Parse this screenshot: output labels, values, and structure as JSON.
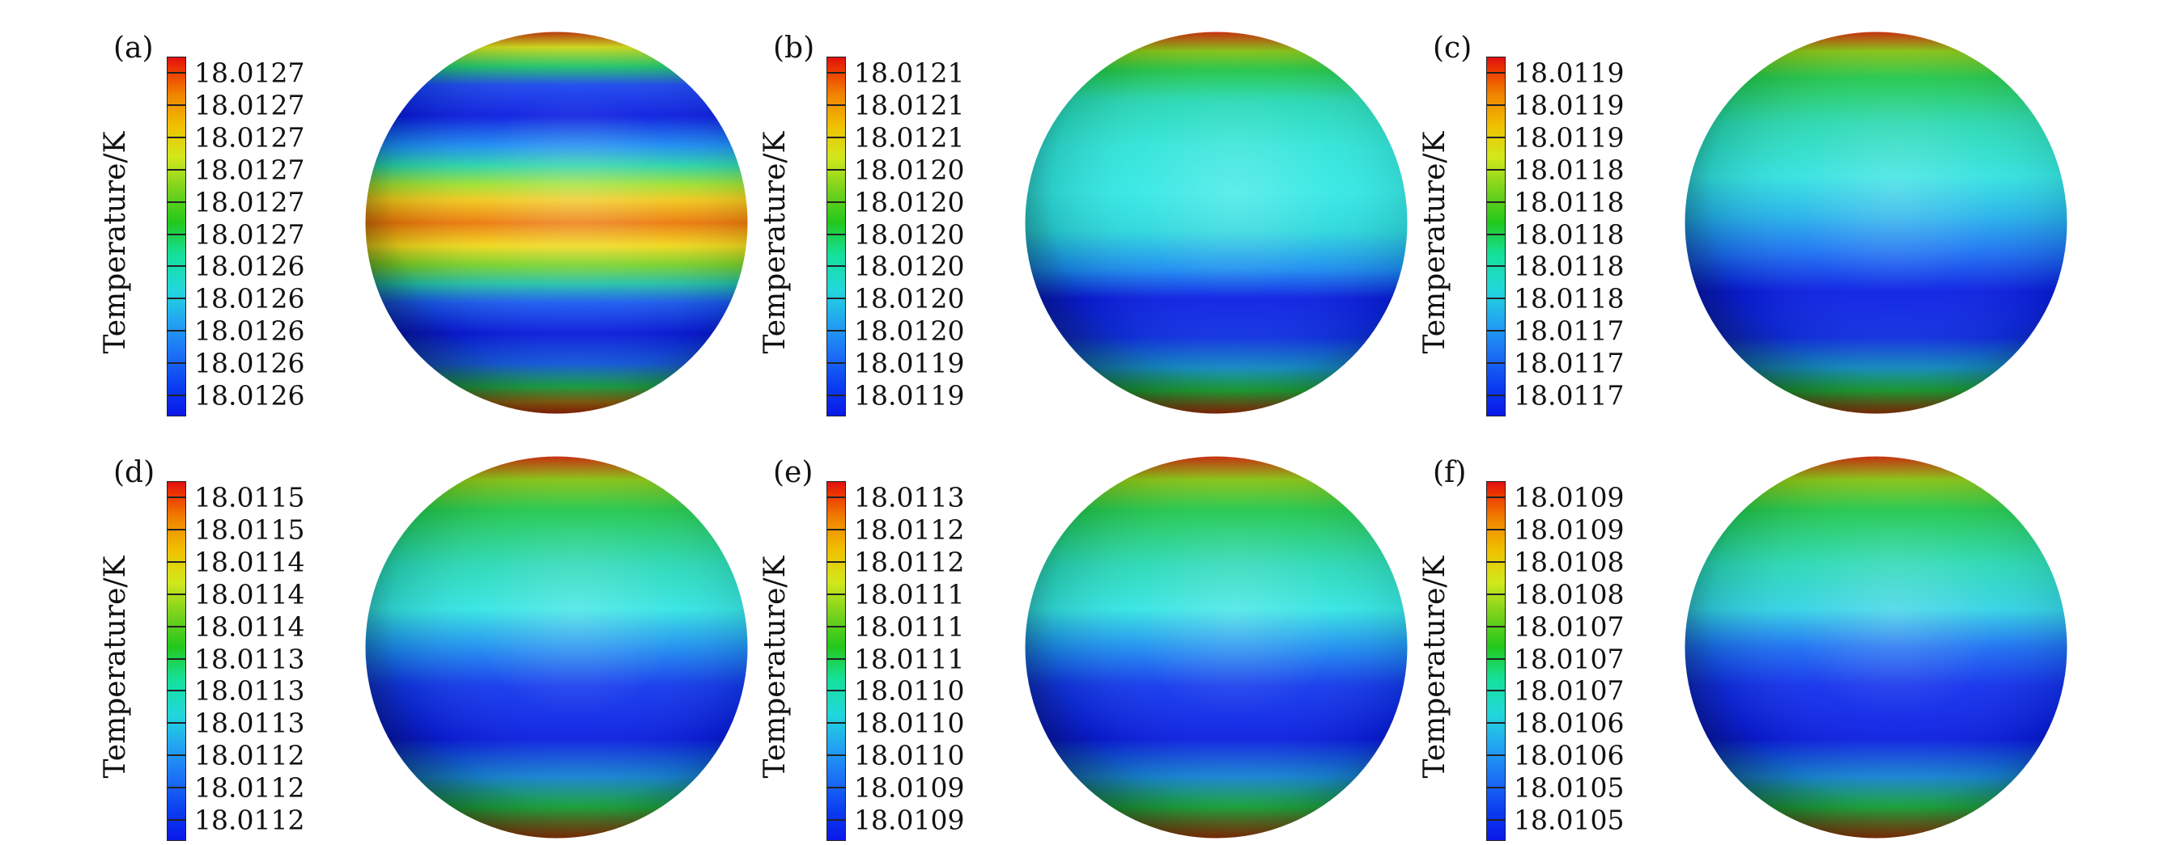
{
  "colorbar_title": "Temperature/K",
  "colors": {
    "deep_blue": "#0a1ce6",
    "blue": "#1a5af4",
    "cyan": "#2ee8e0",
    "green": "#2ec82a",
    "yellow": "#f0e81a",
    "orange": "#f08c0a",
    "red": "#d02a0a"
  },
  "panels": [
    {
      "label": "(a)",
      "ticks": [
        "18.0127",
        "18.0127",
        "18.0127",
        "18.0127",
        "18.0127",
        "18.0127",
        "18.0126",
        "18.0126",
        "18.0126",
        "18.0126",
        "18.0126"
      ],
      "bands": [
        {
          "pos": 0.0,
          "color": "#c43a08"
        },
        {
          "pos": 0.04,
          "color": "#d2e01a"
        },
        {
          "pos": 0.09,
          "color": "#1ec86a"
        },
        {
          "pos": 0.14,
          "color": "#1a46ee"
        },
        {
          "pos": 0.22,
          "color": "#0a1ce0"
        },
        {
          "pos": 0.3,
          "color": "#1a8ef0"
        },
        {
          "pos": 0.35,
          "color": "#28d2a8"
        },
        {
          "pos": 0.4,
          "color": "#9ee030"
        },
        {
          "pos": 0.44,
          "color": "#f0c81a"
        },
        {
          "pos": 0.5,
          "color": "#ec780a"
        },
        {
          "pos": 0.56,
          "color": "#f0d81a"
        },
        {
          "pos": 0.61,
          "color": "#7ad22a"
        },
        {
          "pos": 0.66,
          "color": "#22c0a8"
        },
        {
          "pos": 0.71,
          "color": "#1a5af2"
        },
        {
          "pos": 0.79,
          "color": "#0a1ce4"
        },
        {
          "pos": 0.87,
          "color": "#1a64ee"
        },
        {
          "pos": 0.93,
          "color": "#24c052"
        },
        {
          "pos": 0.97,
          "color": "#b07a14"
        },
        {
          "pos": 1.0,
          "color": "#c4300a"
        }
      ]
    },
    {
      "label": "(b)",
      "ticks": [
        "18.0121",
        "18.0121",
        "18.0121",
        "18.0120",
        "18.0120",
        "18.0120",
        "18.0120",
        "18.0120",
        "18.0120",
        "18.0119",
        "18.0119"
      ],
      "bands": [
        {
          "pos": 0.0,
          "color": "#d4300a"
        },
        {
          "pos": 0.05,
          "color": "#88c814"
        },
        {
          "pos": 0.1,
          "color": "#22c848"
        },
        {
          "pos": 0.18,
          "color": "#26d8b4"
        },
        {
          "pos": 0.3,
          "color": "#2ee4d8"
        },
        {
          "pos": 0.42,
          "color": "#32e8e4"
        },
        {
          "pos": 0.52,
          "color": "#2ad8dc"
        },
        {
          "pos": 0.62,
          "color": "#1a8ef0"
        },
        {
          "pos": 0.7,
          "color": "#0a1ee4"
        },
        {
          "pos": 0.8,
          "color": "#1034ec"
        },
        {
          "pos": 0.88,
          "color": "#1a9ad8"
        },
        {
          "pos": 0.94,
          "color": "#24c040"
        },
        {
          "pos": 1.0,
          "color": "#c0380a"
        }
      ]
    },
    {
      "label": "(c)",
      "ticks": [
        "18.0119",
        "18.0119",
        "18.0119",
        "18.0118",
        "18.0118",
        "18.0118",
        "18.0118",
        "18.0118",
        "18.0117",
        "18.0117",
        "18.0117"
      ],
      "bands": [
        {
          "pos": 0.0,
          "color": "#d4300a"
        },
        {
          "pos": 0.05,
          "color": "#8cc814"
        },
        {
          "pos": 0.12,
          "color": "#22c84c"
        },
        {
          "pos": 0.24,
          "color": "#28d8b0"
        },
        {
          "pos": 0.38,
          "color": "#30e2e0"
        },
        {
          "pos": 0.48,
          "color": "#24b4ea"
        },
        {
          "pos": 0.58,
          "color": "#1a6ef2"
        },
        {
          "pos": 0.68,
          "color": "#0a1ee4"
        },
        {
          "pos": 0.8,
          "color": "#1030ea"
        },
        {
          "pos": 0.88,
          "color": "#1a9ad2"
        },
        {
          "pos": 0.94,
          "color": "#24c040"
        },
        {
          "pos": 1.0,
          "color": "#b8400a"
        }
      ]
    },
    {
      "label": "(d)",
      "ticks": [
        "18.0115",
        "18.0115",
        "18.0114",
        "18.0114",
        "18.0114",
        "18.0113",
        "18.0113",
        "18.0113",
        "18.0112",
        "18.0112",
        "18.0112"
      ],
      "bands": [
        {
          "pos": 0.0,
          "color": "#d2300a"
        },
        {
          "pos": 0.06,
          "color": "#8cc814"
        },
        {
          "pos": 0.14,
          "color": "#22c84c"
        },
        {
          "pos": 0.28,
          "color": "#28d8b4"
        },
        {
          "pos": 0.4,
          "color": "#32e4e2"
        },
        {
          "pos": 0.5,
          "color": "#1c8ef0"
        },
        {
          "pos": 0.6,
          "color": "#1238ec"
        },
        {
          "pos": 0.74,
          "color": "#0a1ee4"
        },
        {
          "pos": 0.84,
          "color": "#1a8ee0"
        },
        {
          "pos": 0.92,
          "color": "#24c048"
        },
        {
          "pos": 1.0,
          "color": "#b8420a"
        }
      ]
    },
    {
      "label": "(e)",
      "ticks": [
        "18.0113",
        "18.0112",
        "18.0112",
        "18.0111",
        "18.0111",
        "18.0111",
        "18.0110",
        "18.0110",
        "18.0110",
        "18.0109",
        "18.0109"
      ],
      "bands": [
        {
          "pos": 0.0,
          "color": "#d2300a"
        },
        {
          "pos": 0.06,
          "color": "#8cc814"
        },
        {
          "pos": 0.14,
          "color": "#22c84c"
        },
        {
          "pos": 0.28,
          "color": "#28d8b4"
        },
        {
          "pos": 0.4,
          "color": "#32e4e2"
        },
        {
          "pos": 0.5,
          "color": "#1c8ef0"
        },
        {
          "pos": 0.6,
          "color": "#1238ec"
        },
        {
          "pos": 0.74,
          "color": "#0a1ee4"
        },
        {
          "pos": 0.84,
          "color": "#1a8ee0"
        },
        {
          "pos": 0.92,
          "color": "#24c048"
        },
        {
          "pos": 1.0,
          "color": "#b8420a"
        }
      ]
    },
    {
      "label": "(f)",
      "ticks": [
        "18.0109",
        "18.0109",
        "18.0108",
        "18.0108",
        "18.0107",
        "18.0107",
        "18.0107",
        "18.0106",
        "18.0106",
        "18.0105",
        "18.0105"
      ],
      "bands": [
        {
          "pos": 0.0,
          "color": "#d2300a"
        },
        {
          "pos": 0.06,
          "color": "#8cc814"
        },
        {
          "pos": 0.14,
          "color": "#22c84c"
        },
        {
          "pos": 0.28,
          "color": "#28d8b4"
        },
        {
          "pos": 0.4,
          "color": "#30d2e4"
        },
        {
          "pos": 0.5,
          "color": "#1a6ef2"
        },
        {
          "pos": 0.6,
          "color": "#1230ec"
        },
        {
          "pos": 0.74,
          "color": "#0a1ee4"
        },
        {
          "pos": 0.84,
          "color": "#1a8ee0"
        },
        {
          "pos": 0.92,
          "color": "#24c048"
        },
        {
          "pos": 1.0,
          "color": "#b8420a"
        }
      ]
    }
  ]
}
